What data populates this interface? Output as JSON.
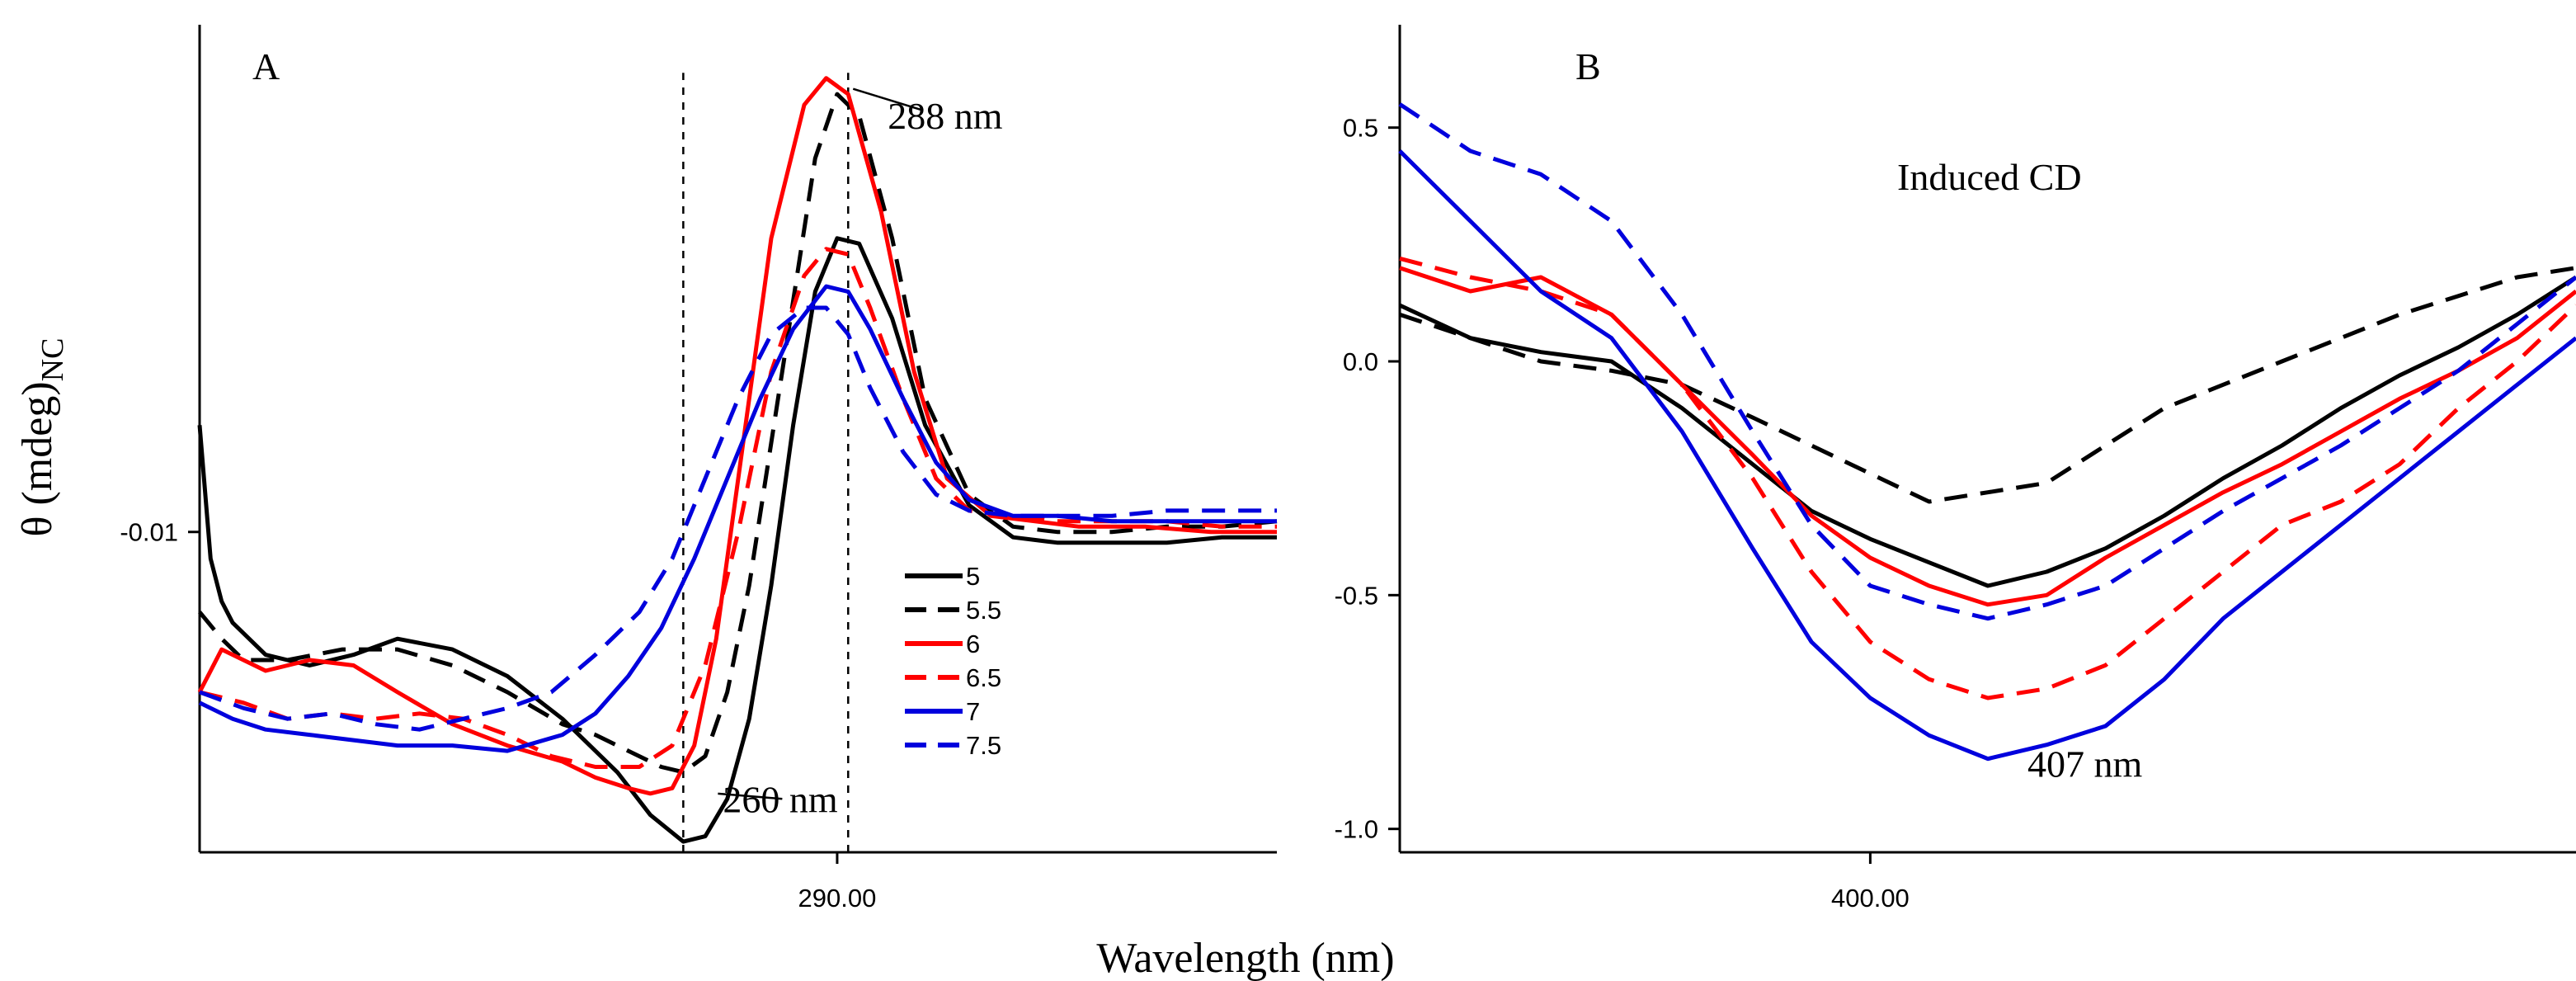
{
  "figure": {
    "xlabel": "Wavelength (nm)",
    "ylabel_main": "θ (mdeg)",
    "ylabel_sub": "NC"
  },
  "chart_data": [
    {
      "type": "line",
      "panel": "A",
      "panel_label": "A",
      "xlim": [
        232,
        330
      ],
      "ylim": [
        -0.016,
        -0.0005
      ],
      "xticks": [
        290
      ],
      "xtick_labels": [
        "290.00"
      ],
      "yticks": [
        -0.01
      ],
      "ytick_labels": [
        "-0.01"
      ],
      "annotations": [
        {
          "text": "288 nm",
          "x": 291,
          "y": -0.0022
        },
        {
          "text": "260 nm",
          "x": 276,
          "y": -0.015
        }
      ],
      "guides_x": [
        276,
        291
      ],
      "legend": {
        "title": "",
        "placement": "lower-right",
        "entries": [
          "5",
          "5.5",
          "6",
          "6.5",
          "7",
          "7.5"
        ]
      },
      "series": [
        {
          "name": "5",
          "color": "#000000",
          "dash": "solid",
          "x": [
            232,
            233,
            234,
            235,
            238,
            242,
            246,
            250,
            255,
            260,
            265,
            270,
            273,
            276,
            278,
            280,
            282,
            284,
            286,
            288,
            290,
            292,
            295,
            298,
            302,
            306,
            310,
            315,
            320,
            325,
            330
          ],
          "y": [
            -0.008,
            -0.0105,
            -0.0113,
            -0.0117,
            -0.0123,
            -0.0125,
            -0.0123,
            -0.012,
            -0.0122,
            -0.0127,
            -0.0135,
            -0.0145,
            -0.0153,
            -0.0158,
            -0.0157,
            -0.015,
            -0.0135,
            -0.011,
            -0.008,
            -0.0055,
            -0.0045,
            -0.0046,
            -0.006,
            -0.008,
            -0.0095,
            -0.0101,
            -0.0102,
            -0.0102,
            -0.0102,
            -0.0101,
            -0.0101
          ]
        },
        {
          "name": "5.5",
          "color": "#000000",
          "dash": "dashed",
          "x": [
            232,
            234,
            236,
            240,
            245,
            250,
            255,
            260,
            265,
            268,
            271,
            274,
            276,
            278,
            280,
            282,
            285,
            288,
            290,
            292,
            295,
            298,
            302,
            306,
            310,
            315,
            320,
            325,
            330
          ],
          "y": [
            -0.0115,
            -0.012,
            -0.0124,
            -0.0124,
            -0.0122,
            -0.0122,
            -0.0125,
            -0.013,
            -0.0136,
            -0.0138,
            -0.0141,
            -0.0144,
            -0.0145,
            -0.0142,
            -0.013,
            -0.011,
            -0.007,
            -0.003,
            -0.0018,
            -0.0022,
            -0.0045,
            -0.0075,
            -0.0093,
            -0.0099,
            -0.01,
            -0.01,
            -0.0099,
            -0.0099,
            -0.0098
          ]
        },
        {
          "name": "6",
          "color": "#ff0000",
          "dash": "solid",
          "x": [
            232,
            234,
            238,
            242,
            246,
            250,
            255,
            260,
            265,
            268,
            271,
            273,
            275,
            277,
            279,
            281,
            284,
            287,
            289,
            291,
            294,
            297,
            300,
            304,
            308,
            312,
            318,
            324,
            330
          ],
          "y": [
            -0.013,
            -0.0122,
            -0.0126,
            -0.0124,
            -0.0125,
            -0.013,
            -0.0136,
            -0.014,
            -0.0143,
            -0.0146,
            -0.0148,
            -0.0149,
            -0.0148,
            -0.014,
            -0.012,
            -0.009,
            -0.0045,
            -0.002,
            -0.0015,
            -0.0018,
            -0.004,
            -0.007,
            -0.009,
            -0.0097,
            -0.0098,
            -0.0099,
            -0.0099,
            -0.01,
            -0.01
          ]
        },
        {
          "name": "6.5",
          "color": "#ff0000",
          "dash": "dashed",
          "x": [
            232,
            236,
            240,
            244,
            248,
            252,
            256,
            260,
            264,
            268,
            272,
            275,
            278,
            281,
            284,
            287,
            289,
            291,
            293,
            296,
            299,
            302,
            306,
            310,
            315,
            320,
            325,
            330
          ],
          "y": [
            -0.013,
            -0.0132,
            -0.0135,
            -0.0134,
            -0.0135,
            -0.0134,
            -0.0135,
            -0.0138,
            -0.0142,
            -0.0144,
            -0.0144,
            -0.014,
            -0.0125,
            -0.01,
            -0.007,
            -0.0052,
            -0.0047,
            -0.0048,
            -0.0058,
            -0.0075,
            -0.009,
            -0.0096,
            -0.0097,
            -0.0098,
            -0.0098,
            -0.0098,
            -0.0099,
            -0.0099
          ]
        },
        {
          "name": "7",
          "color": "#0000dd",
          "dash": "solid",
          "x": [
            232,
            235,
            238,
            242,
            246,
            250,
            255,
            260,
            265,
            268,
            271,
            274,
            277,
            280,
            283,
            286,
            289,
            291,
            293,
            296,
            299,
            302,
            306,
            310,
            315,
            320,
            325,
            330
          ],
          "y": [
            -0.0132,
            -0.0135,
            -0.0137,
            -0.0138,
            -0.0139,
            -0.014,
            -0.014,
            -0.0141,
            -0.0138,
            -0.0134,
            -0.0127,
            -0.0118,
            -0.0105,
            -0.009,
            -0.0075,
            -0.0062,
            -0.0054,
            -0.0055,
            -0.0062,
            -0.0075,
            -0.0087,
            -0.0094,
            -0.0097,
            -0.0097,
            -0.0098,
            -0.0098,
            -0.0098,
            -0.0098
          ]
        },
        {
          "name": "7.5",
          "color": "#0000dd",
          "dash": "dashed",
          "x": [
            232,
            236,
            240,
            244,
            248,
            252,
            256,
            260,
            264,
            268,
            272,
            275,
            278,
            281,
            284,
            287,
            289,
            291,
            293,
            296,
            299,
            302,
            306,
            310,
            315,
            320,
            325,
            330
          ],
          "y": [
            -0.013,
            -0.0133,
            -0.0135,
            -0.0134,
            -0.0136,
            -0.0137,
            -0.0135,
            -0.0133,
            -0.013,
            -0.0123,
            -0.0115,
            -0.0105,
            -0.009,
            -0.0075,
            -0.0063,
            -0.0058,
            -0.0058,
            -0.0063,
            -0.0073,
            -0.0085,
            -0.0093,
            -0.0096,
            -0.0097,
            -0.0097,
            -0.0097,
            -0.0096,
            -0.0096,
            -0.0096
          ]
        }
      ]
    },
    {
      "type": "line",
      "panel": "B",
      "panel_label": "B",
      "title": "Induced CD",
      "xlim": [
        360,
        460
      ],
      "ylim": [
        -1.05,
        0.72
      ],
      "xticks": [
        400
      ],
      "xtick_labels": [
        "400.00"
      ],
      "yticks": [
        0.5,
        0.0,
        -0.5,
        -1.0
      ],
      "ytick_labels": [
        "0.5",
        "0.0",
        "-0.5",
        "-1.0"
      ],
      "annotations": [
        {
          "text": "407 nm",
          "x": 410,
          "y": -0.86
        }
      ],
      "series": [
        {
          "name": "5",
          "color": "#000000",
          "dash": "solid",
          "x": [
            360,
            366,
            372,
            378,
            384,
            390,
            395,
            400,
            405,
            410,
            415,
            420,
            425,
            430,
            435,
            440,
            445,
            450,
            455,
            460
          ],
          "y": [
            0.12,
            0.05,
            0.02,
            0.0,
            -0.1,
            -0.22,
            -0.32,
            -0.38,
            -0.43,
            -0.48,
            -0.45,
            -0.4,
            -0.33,
            -0.25,
            -0.18,
            -0.1,
            -0.03,
            0.03,
            0.1,
            0.18
          ]
        },
        {
          "name": "5.5",
          "color": "#000000",
          "dash": "dashed",
          "x": [
            360,
            366,
            372,
            378,
            384,
            390,
            395,
            400,
            405,
            410,
            415,
            420,
            425,
            430,
            435,
            440,
            445,
            450,
            455,
            460
          ],
          "y": [
            0.1,
            0.05,
            0.0,
            -0.02,
            -0.05,
            -0.12,
            -0.18,
            -0.24,
            -0.3,
            -0.28,
            -0.26,
            -0.18,
            -0.1,
            -0.05,
            0.0,
            0.05,
            0.1,
            0.14,
            0.18,
            0.2
          ]
        },
        {
          "name": "6",
          "color": "#ff0000",
          "dash": "solid",
          "x": [
            360,
            366,
            372,
            378,
            384,
            390,
            395,
            400,
            405,
            410,
            415,
            420,
            425,
            430,
            435,
            440,
            445,
            450,
            455,
            460
          ],
          "y": [
            0.2,
            0.15,
            0.18,
            0.1,
            -0.05,
            -0.2,
            -0.33,
            -0.42,
            -0.48,
            -0.52,
            -0.5,
            -0.42,
            -0.35,
            -0.28,
            -0.22,
            -0.15,
            -0.08,
            -0.02,
            0.05,
            0.15
          ]
        },
        {
          "name": "6.5",
          "color": "#ff0000",
          "dash": "dashed",
          "x": [
            360,
            366,
            372,
            378,
            384,
            390,
            395,
            400,
            405,
            410,
            415,
            420,
            425,
            430,
            435,
            440,
            445,
            450,
            455,
            460
          ],
          "y": [
            0.22,
            0.18,
            0.15,
            0.1,
            -0.05,
            -0.25,
            -0.45,
            -0.6,
            -0.68,
            -0.72,
            -0.7,
            -0.65,
            -0.55,
            -0.45,
            -0.35,
            -0.3,
            -0.22,
            -0.1,
            0.0,
            0.12
          ]
        },
        {
          "name": "7",
          "color": "#0000dd",
          "dash": "solid",
          "x": [
            360,
            366,
            372,
            378,
            384,
            390,
            395,
            400,
            405,
            410,
            415,
            420,
            425,
            430,
            435,
            440,
            445,
            450,
            455,
            460
          ],
          "y": [
            0.45,
            0.3,
            0.15,
            0.05,
            -0.15,
            -0.4,
            -0.6,
            -0.72,
            -0.8,
            -0.85,
            -0.82,
            -0.78,
            -0.68,
            -0.55,
            -0.45,
            -0.35,
            -0.25,
            -0.15,
            -0.05,
            0.05
          ]
        },
        {
          "name": "7.5",
          "color": "#0000dd",
          "dash": "dashed",
          "x": [
            360,
            366,
            372,
            378,
            384,
            390,
            395,
            400,
            405,
            410,
            415,
            420,
            425,
            430,
            435,
            440,
            445,
            450,
            455,
            460
          ],
          "y": [
            0.55,
            0.45,
            0.4,
            0.3,
            0.1,
            -0.15,
            -0.35,
            -0.48,
            -0.52,
            -0.55,
            -0.52,
            -0.48,
            -0.4,
            -0.32,
            -0.25,
            -0.18,
            -0.1,
            -0.02,
            0.08,
            0.18
          ]
        }
      ]
    }
  ]
}
